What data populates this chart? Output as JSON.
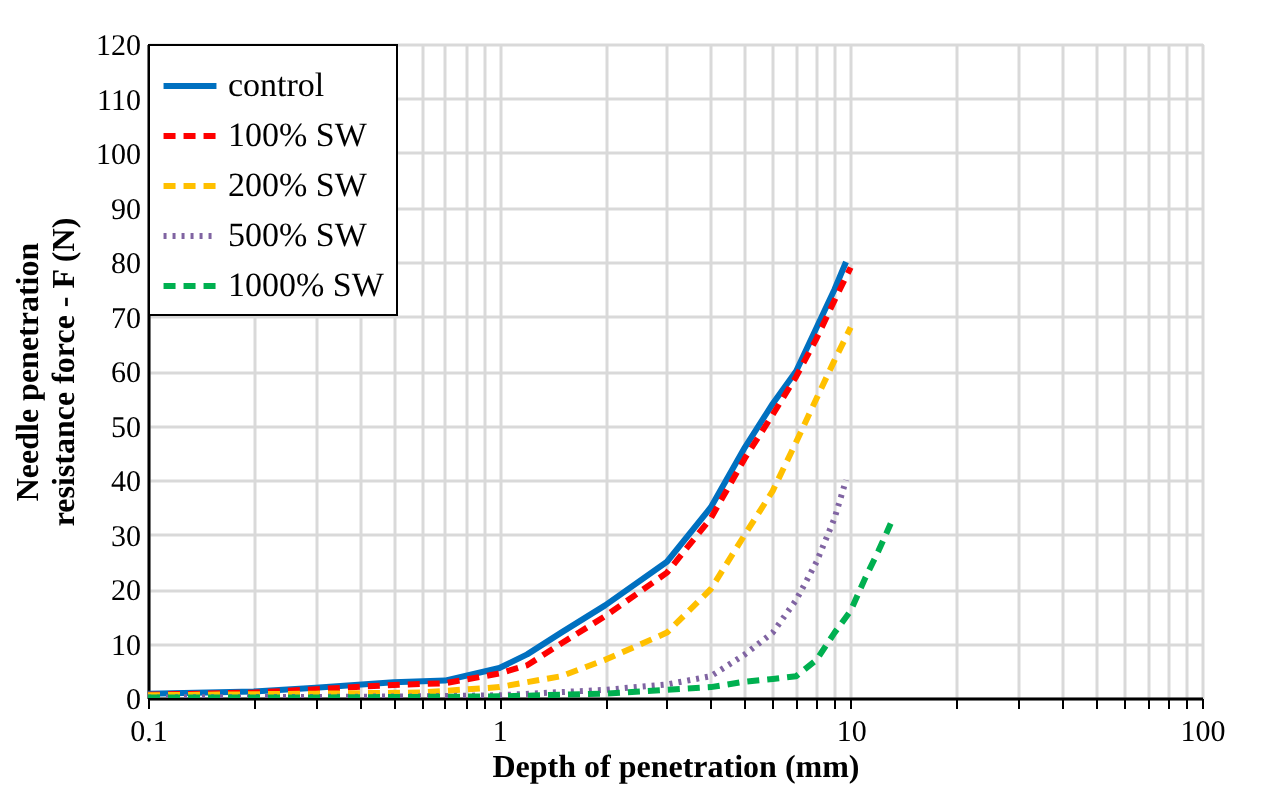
{
  "chart_data": {
    "type": "line",
    "xlabel": "Depth of penetration (mm)",
    "ylabel": "Needle penetration\nresistance force - F (N)",
    "log": "x",
    "xlim": [
      0.1,
      100
    ],
    "ylim": [
      0,
      120
    ],
    "xticks": [
      0.1,
      {
        "value": 0.2,
        "label": null
      },
      {
        "value": 0.3,
        "label": null
      },
      {
        "value": 0.4,
        "label": null
      },
      {
        "value": 0.5,
        "label": null
      },
      {
        "value": 0.6,
        "label": null
      },
      {
        "value": 0.7,
        "label": null
      },
      {
        "value": 0.8,
        "label": null
      },
      {
        "value": 0.9,
        "label": null
      },
      1,
      {
        "value": 2,
        "label": null
      },
      {
        "value": 3,
        "label": null
      },
      {
        "value": 4,
        "label": null
      },
      {
        "value": 5,
        "label": null
      },
      {
        "value": 6,
        "label": null
      },
      {
        "value": 7,
        "label": null
      },
      {
        "value": 8,
        "label": null
      },
      {
        "value": 9,
        "label": null
      },
      10,
      {
        "value": 20,
        "label": null
      },
      {
        "value": 30,
        "label": null
      },
      {
        "value": 40,
        "label": null
      },
      {
        "value": 50,
        "label": null
      },
      {
        "value": 60,
        "label": null
      },
      {
        "value": 70,
        "label": null
      },
      {
        "value": 80,
        "label": null
      },
      {
        "value": 90,
        "label": null
      },
      100
    ],
    "yticks": [
      0,
      10,
      20,
      30,
      40,
      50,
      60,
      70,
      80,
      90,
      100,
      110,
      120
    ],
    "grid": true,
    "legend": "top left",
    "marker": "none",
    "series": [
      {
        "name": "control",
        "color": "#0070c0",
        "line_style": "solid",
        "x": [
          0.1,
          0.2,
          0.3,
          0.5,
          0.7,
          1,
          1.2,
          1.5,
          2,
          3,
          4,
          5,
          6,
          7,
          8,
          9,
          9.7
        ],
        "values": [
          0.8,
          1.2,
          1.9,
          2.9,
          3.2,
          5.5,
          8,
          12,
          17,
          25,
          35,
          46,
          54,
          60,
          68,
          75,
          80
        ]
      },
      {
        "name": "100% SW",
        "color": "#ff0000",
        "line_style": "dashed",
        "x": [
          0.1,
          0.2,
          0.3,
          0.5,
          0.7,
          1,
          1.2,
          1.5,
          2,
          3,
          4,
          5,
          6,
          7,
          8,
          9,
          10
        ],
        "values": [
          0.6,
          1,
          1.6,
          2.4,
          2.7,
          4.5,
          6,
          10,
          15,
          23,
          33,
          44,
          52,
          59,
          66,
          73,
          79
        ]
      },
      {
        "name": "200% SW",
        "color": "#ffc000",
        "line_style": "dashed",
        "x": [
          0.1,
          0.3,
          0.6,
          1,
          1.5,
          2,
          3,
          4,
          5,
          6,
          7,
          8,
          9,
          10
        ],
        "values": [
          0.5,
          0.8,
          1,
          2,
          4,
          7,
          12,
          20,
          30,
          38,
          47,
          55,
          62,
          68
        ]
      },
      {
        "name": "500% SW",
        "color": "#8064a2",
        "line_style": "dotted",
        "x": [
          0.1,
          0.3,
          0.6,
          1,
          2,
          3,
          4,
          5,
          6,
          7,
          8,
          9,
          9.7
        ],
        "values": [
          0.1,
          0.2,
          0.3,
          0.5,
          1.5,
          2.5,
          4,
          8,
          12,
          18,
          25,
          33,
          40
        ]
      },
      {
        "name": "1000% SW",
        "color": "#00b050",
        "line_style": "dashed",
        "x": [
          0.1,
          0.3,
          0.6,
          1,
          2,
          3,
          4,
          5,
          6,
          7,
          8,
          9,
          10,
          11,
          12,
          13
        ],
        "values": [
          0.1,
          0.1,
          0.2,
          0.3,
          0.8,
          1.5,
          2,
          3,
          3.5,
          4,
          7,
          12,
          16,
          22,
          27,
          32
        ]
      }
    ]
  }
}
